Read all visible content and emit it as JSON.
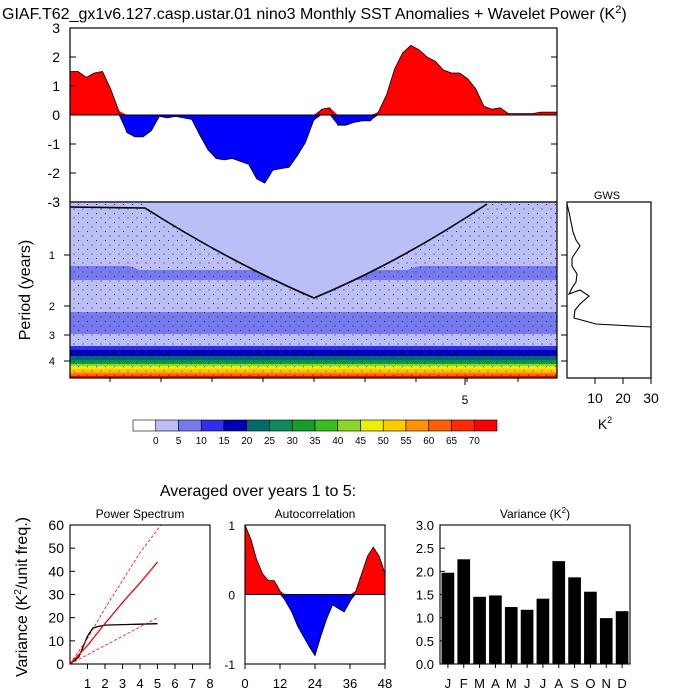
{
  "title": "GIAF.T62_gx1v6.127.casp.ustar.01 nino3 Monthly SST Anomalies + Wavelet Power (K",
  "title_sup": "2",
  "title_close": ")",
  "colors": {
    "positive": "#ff0000",
    "negative": "#0000ff",
    "wavelet_light": "#bcbef7",
    "wavelet_band": "#7779ef",
    "line": "#000000"
  },
  "chart_data": [
    {
      "type": "area",
      "name": "sst-anomaly",
      "x_range": [
        0,
        60
      ],
      "ylim": [
        -3,
        3
      ],
      "yticks": [
        3,
        2,
        1,
        0,
        -1,
        -2,
        -3
      ],
      "x": [
        0,
        1,
        2,
        3,
        4,
        5,
        6,
        7,
        8,
        9,
        10,
        11,
        12,
        13,
        14,
        15,
        16,
        17,
        18,
        19,
        20,
        21,
        22,
        23,
        24,
        25,
        26,
        27,
        28,
        29,
        30,
        31,
        32,
        33,
        34,
        35,
        36,
        37,
        38,
        39,
        40,
        41,
        42,
        43,
        44,
        45,
        46,
        47,
        48,
        49,
        50,
        51,
        52,
        53,
        54,
        55,
        56,
        57,
        58,
        59,
        60
      ],
      "values": [
        1.5,
        1.5,
        1.3,
        1.45,
        1.5,
        0.9,
        0.15,
        -0.6,
        -0.75,
        -0.75,
        -0.55,
        -0.05,
        -0.1,
        -0.05,
        -0.1,
        -0.15,
        -0.7,
        -1.2,
        -1.5,
        -1.55,
        -1.5,
        -1.6,
        -1.7,
        -2.2,
        -2.35,
        -1.9,
        -1.85,
        -1.8,
        -1.4,
        -0.95,
        -0.2,
        0.2,
        0.25,
        -0.35,
        -0.35,
        -0.25,
        -0.2,
        -0.2,
        0.1,
        0.7,
        1.6,
        2.15,
        2.4,
        2.25,
        2.0,
        1.85,
        1.55,
        1.45,
        1.45,
        1.25,
        0.9,
        0.3,
        0.2,
        0.25,
        0.05,
        0.05,
        0.05,
        0.05,
        0.1,
        0.1,
        0.1
      ]
    },
    {
      "type": "heatmap",
      "name": "wavelet-power",
      "ylabel": "Period (years)",
      "yticks": [
        "1",
        "2",
        "3",
        "4"
      ],
      "xticks": [
        "5"
      ],
      "colorbar_levels": [
        "0",
        "5",
        "10",
        "15",
        "20",
        "25",
        "30",
        "35",
        "40",
        "45",
        "50",
        "55",
        "60",
        "65",
        "70"
      ],
      "colorbar_colors": [
        "#ffffff",
        "#bcbef7",
        "#7779ef",
        "#2f2ff0",
        "#0000b5",
        "#006b6b",
        "#0e8a5e",
        "#13a02a",
        "#38bf1f",
        "#8cd62b",
        "#eeee00",
        "#ffca00",
        "#ff9400",
        "#ff5e00",
        "#ff2a00",
        "#ff0000"
      ]
    },
    {
      "type": "line",
      "name": "gws",
      "title": "GWS",
      "xlabel": "K",
      "xlabel_sup": "2",
      "xticks": [
        10,
        20,
        30
      ],
      "xlim": [
        0,
        30
      ]
    },
    {
      "type": "line",
      "name": "power-spectrum",
      "title": "Power Spectrum",
      "ylabel": "Variance (K",
      "ylabel_sup": "2",
      "ylabel_close": "/unit freq.)",
      "xlim": [
        0,
        8
      ],
      "ylim": [
        0,
        60
      ],
      "xticks": [
        1,
        2,
        3,
        4,
        5,
        6,
        7,
        8
      ],
      "yticks": [
        0,
        10,
        20,
        30,
        40,
        50,
        60
      ],
      "series": [
        {
          "name": "spectrum",
          "x": [
            0,
            0.5,
            1,
            1.3,
            1.6,
            2,
            3,
            4,
            5
          ],
          "y": [
            0,
            3,
            12,
            15.5,
            16.2,
            16.8,
            17,
            17.2,
            17.4
          ]
        },
        {
          "name": "red-noise",
          "x": [
            0,
            1,
            2,
            3,
            4,
            5
          ],
          "y": [
            0,
            8,
            17.5,
            26.5,
            35,
            44
          ]
        },
        {
          "name": "upper-confidence",
          "x": [
            0,
            1,
            2,
            3,
            4,
            5,
            5.3
          ],
          "y": [
            0,
            11,
            24,
            36,
            48,
            58,
            61
          ]
        },
        {
          "name": "lower-confidence",
          "x": [
            0,
            1,
            2,
            3,
            4,
            5
          ],
          "y": [
            0,
            4,
            8,
            12,
            16,
            20
          ]
        }
      ]
    },
    {
      "type": "area",
      "name": "autocorrelation",
      "title": "Autocorrelation",
      "xlim": [
        0,
        48
      ],
      "ylim": [
        -1,
        1
      ],
      "xticks": [
        0,
        12,
        24,
        36,
        48
      ],
      "yticks": [
        1,
        0,
        -1
      ],
      "x": [
        0,
        2,
        4,
        6,
        8,
        10,
        12,
        14,
        16,
        18,
        20,
        22,
        24,
        26,
        28,
        30,
        32,
        34,
        36,
        38,
        40,
        42,
        44,
        46,
        48
      ],
      "values": [
        1.0,
        0.8,
        0.5,
        0.3,
        0.2,
        0.2,
        0.05,
        -0.1,
        -0.25,
        -0.45,
        -0.6,
        -0.75,
        -0.88,
        -0.6,
        -0.35,
        -0.15,
        -0.2,
        -0.25,
        -0.1,
        0.05,
        0.3,
        0.55,
        0.68,
        0.55,
        0.3
      ]
    },
    {
      "type": "bar",
      "name": "variance",
      "title": "Variance (K",
      "title_sup": "2",
      "title_close": ")",
      "categories": [
        "J",
        "F",
        "M",
        "A",
        "M",
        "J",
        "J",
        "A",
        "S",
        "O",
        "N",
        "D"
      ],
      "values": [
        1.97,
        2.26,
        1.45,
        1.48,
        1.23,
        1.17,
        1.41,
        2.22,
        1.87,
        1.56,
        0.99,
        1.14
      ],
      "ylim": [
        0,
        3
      ],
      "yticks": [
        "0.0",
        "0.5",
        "1.0",
        "1.5",
        "2.0",
        "2.5",
        "3.0"
      ]
    }
  ],
  "averaged_label": "Averaged over years 1 to 5:"
}
